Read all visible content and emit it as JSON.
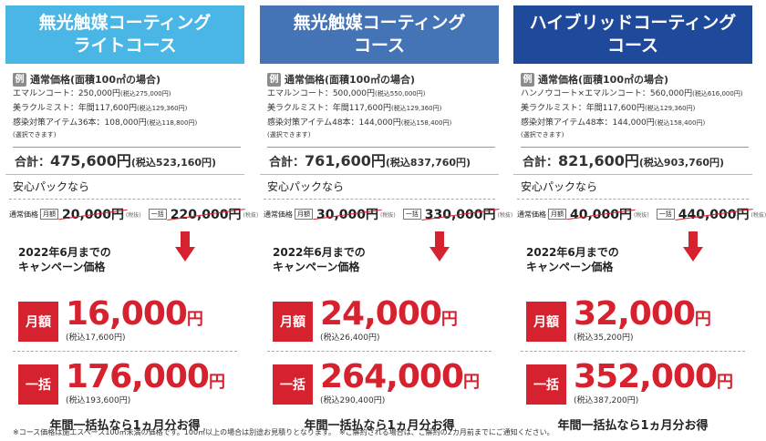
{
  "columns": [
    {
      "title": "無光触媒コーティング\nライトコース",
      "header_color": "#49b6e6",
      "example_badge": "例",
      "example_title": "通常価格(面積100㎡の場合)",
      "line1": "エマルンコート：250,000円",
      "line1_tax": "(税込275,000円)",
      "line2": "美ラクルミスト：年間117,600円",
      "line2_tax": "(税込129,360円)",
      "line3": "感染対策アイテム36本：108,000円",
      "line3_tax": "(税込118,800円)",
      "line4": "(選択できます)",
      "total_label": "合計：",
      "total_value": "475,600円",
      "total_tax": "(税込523,160円)",
      "safe_pack": "安心パックなら",
      "std_label": "通常価格",
      "monthly_tag": "月額",
      "monthly_std": "20,000円",
      "tax_tag": "(税抜)",
      "lump_tag": "一括",
      "lump_std": "220,000円",
      "campaign": "2022年6月までの\nキャンペーン価格",
      "monthly_label": "月額",
      "monthly_price": "16,000",
      "yen": "円",
      "monthly_tax": "(税込17,600円)",
      "lump_label": "一括",
      "lump_price": "176,000",
      "lump_tax": "(税込193,600円)",
      "bonus": "年間一括払なら1ヵ月分お得"
    },
    {
      "title": "無光触媒コーティング\nコース",
      "header_color": "#4473b6",
      "example_badge": "例",
      "example_title": "通常価格(面積100㎡の場合)",
      "line1": "エマルンコート：500,000円",
      "line1_tax": "(税込550,000円)",
      "line2": "美ラクルミスト：年間117,600円",
      "line2_tax": "(税込129,360円)",
      "line3": "感染対策アイテム48本：144,000円",
      "line3_tax": "(税込158,400円)",
      "line4": "(選択できます)",
      "total_label": "合計：",
      "total_value": "761,600円",
      "total_tax": "(税込837,760円)",
      "safe_pack": "安心パックなら",
      "std_label": "通常価格",
      "monthly_tag": "月額",
      "monthly_std": "30,000円",
      "tax_tag": "(税抜)",
      "lump_tag": "一括",
      "lump_std": "330,000円",
      "campaign": "2022年6月までの\nキャンペーン価格",
      "monthly_label": "月額",
      "monthly_price": "24,000",
      "yen": "円",
      "monthly_tax": "(税込26,400円)",
      "lump_label": "一括",
      "lump_price": "264,000",
      "lump_tax": "(税込290,400円)",
      "bonus": "年間一括払なら1ヵ月分お得"
    },
    {
      "title": "ハイブリッドコーティング\nコース",
      "header_color": "#1f4a9c",
      "example_badge": "例",
      "example_title": "通常価格(面積100㎡の場合)",
      "line1": "ハンノウコート×エマルンコート：560,000円",
      "line1_tax": "(税込616,000円)",
      "line2": "美ラクルミスト：年間117,600円",
      "line2_tax": "(税込129,360円)",
      "line3": "感染対策アイテム48本：144,000円",
      "line3_tax": "(税込158,400円)",
      "line4": "(選択できます)",
      "total_label": "合計：",
      "total_value": "821,600円",
      "total_tax": "(税込903,760円)",
      "safe_pack": "安心パックなら",
      "std_label": "通常価格",
      "monthly_tag": "月額",
      "monthly_std": "40,000円",
      "tax_tag": "(税抜)",
      "lump_tag": "一括",
      "lump_std": "440,000円",
      "campaign": "2022年6月までの\nキャンペーン価格",
      "monthly_label": "月額",
      "monthly_price": "32,000",
      "yen": "円",
      "monthly_tax": "(税込35,200円)",
      "lump_label": "一括",
      "lump_price": "352,000",
      "lump_tax": "(税込387,200円)",
      "bonus": "年間一括払なら1ヵ月分お得"
    }
  ],
  "accent_color": "#d6212f",
  "footnote": "※コース価格は施工スペース100㎡未満の価格です。100㎡以上の場合は別途お見積りとなります。　※ご解約される場合は、ご解約の2カ月前までにご通知ください。"
}
